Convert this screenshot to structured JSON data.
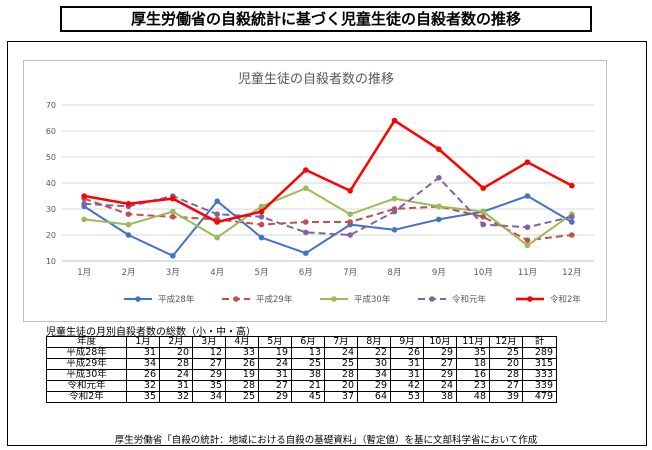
{
  "header": {
    "title": "厚生労働省の自殺統計に基づく児童生徒の自殺者数の推移"
  },
  "chart_data": {
    "type": "line",
    "title": "児童生徒の自殺者数の推移",
    "categories": [
      "1月",
      "2月",
      "3月",
      "4月",
      "5月",
      "6月",
      "7月",
      "8月",
      "9月",
      "10月",
      "11月",
      "12月"
    ],
    "ylim": [
      10,
      70
    ],
    "yticks": [
      10,
      20,
      30,
      40,
      50,
      60,
      70
    ],
    "series": [
      {
        "name": "平成28年",
        "color": "#4472c4",
        "dashed": false,
        "width": 2,
        "values": [
          31,
          20,
          12,
          33,
          19,
          13,
          24,
          22,
          26,
          29,
          35,
          25
        ]
      },
      {
        "name": "平成29年",
        "color": "#c0504d",
        "dashed": true,
        "width": 2,
        "values": [
          34,
          28,
          27,
          26,
          24,
          25,
          25,
          30,
          31,
          27,
          18,
          20
        ]
      },
      {
        "name": "平成30年",
        "color": "#9bbb59",
        "dashed": false,
        "width": 2,
        "values": [
          26,
          24,
          29,
          19,
          31,
          38,
          28,
          34,
          31,
          29,
          16,
          28
        ]
      },
      {
        "name": "令和元年",
        "color": "#8064a2",
        "dashed": true,
        "width": 2,
        "values": [
          32,
          31,
          35,
          28,
          27,
          21,
          20,
          29,
          42,
          24,
          23,
          27
        ]
      },
      {
        "name": "令和2年",
        "color": "#ff0000",
        "dashed": false,
        "width": 2.5,
        "values": [
          35,
          32,
          34,
          25,
          29,
          45,
          37,
          64,
          53,
          38,
          48,
          39
        ]
      }
    ]
  },
  "table": {
    "caption": "児童生徒の月別自殺者数の総数（小・中・高）",
    "corner": "年度",
    "months": [
      "1月",
      "2月",
      "3月",
      "4月",
      "5月",
      "6月",
      "7月",
      "8月",
      "9月",
      "10月",
      "11月",
      "12月"
    ],
    "total_label": "計",
    "rows": [
      {
        "label": "平成28年",
        "values": [
          "31",
          "20",
          "12",
          "33",
          "19",
          "13",
          "24",
          "22",
          "26",
          "29",
          "35",
          "25"
        ],
        "total": "289"
      },
      {
        "label": "平成29年",
        "values": [
          "34",
          "28",
          "27",
          "26",
          "24",
          "25",
          "25",
          "30",
          "31",
          "27",
          "18",
          "20"
        ],
        "total": "315"
      },
      {
        "label": "平成30年",
        "values": [
          "26",
          "24",
          "29",
          "19",
          "31",
          "38",
          "28",
          "34",
          "31",
          "29",
          "16",
          "28"
        ],
        "total": "333"
      },
      {
        "label": "令和元年",
        "values": [
          "32",
          "31",
          "35",
          "28",
          "27",
          "21",
          "20",
          "29",
          "42",
          "24",
          "23",
          "27"
        ],
        "total": "339"
      },
      {
        "label": "令和2年",
        "values": [
          "35",
          "32",
          "34",
          "25",
          "29",
          "45",
          "37",
          "64",
          "53",
          "38",
          "48",
          "39"
        ],
        "total": "479"
      }
    ]
  },
  "footer": {
    "source": "厚生労働省「自殺の統計：地域における自殺の基礎資料」（暫定値）を基に文部科学省において作成"
  }
}
